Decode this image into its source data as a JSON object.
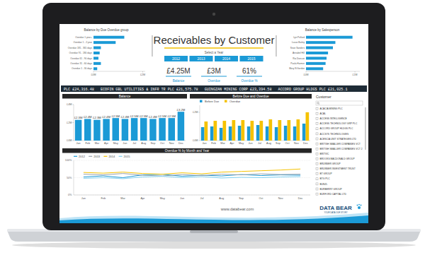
{
  "dashboard": {
    "title": "Receivables by Customer",
    "year_slicer": {
      "label": "Select a Year",
      "years": [
        "2012",
        "2013",
        "2014",
        "2015"
      ]
    },
    "kpis": [
      {
        "value": "£4.25M",
        "label": "Balance"
      },
      {
        "value": "£3M",
        "label": "Overdue"
      },
      {
        "value": "61%",
        "label": "Overdue %"
      }
    ],
    "ticker": "PLC £24,316.48   ECOFIN GBL UTILITIES & INFR TR PLC £21,575.78   GUINGZAN MINING CORP £23,394.58   ACCORD GROUP HLDGS PLC £21,025.1",
    "customer_slicer": {
      "title": "Customer",
      "items": [
        "ACACIA MINING PLC",
        "ACAL",
        "ACCESS INTELLIGENCE",
        "ACCESS TECHNOLOGY GRP PLC",
        "ACCORD GROUP HLDGS PLC",
        "ACCSYS TECHNOLOGIES",
        "ACENCIA UNIT STRATEGIES LTD",
        "BRITISH SMALLER COMPANIES VCT",
        "BRITISH SMALLER COMPANIES VCT 2",
        "BRITVIC",
        "BROOKS MACDONALD GROUP",
        "BRUNNER GROUP",
        "BRUNNER INVESTMENT TRUST",
        "BT GROUP",
        "BTG PLC",
        "BUNZL",
        "BURBERRY GROUP",
        "BURFORD CAPITAL LTD"
      ]
    },
    "footer": {
      "url": "www.databear.com",
      "brand": "DATA BEAR",
      "tagline": "YOUR DATA OUR STORY"
    }
  },
  "chart_data": [
    {
      "type": "bar",
      "orientation": "horizontal",
      "title": "Balance by Due Overdue group",
      "categories": [
        "Overdue 1 year+",
        "Overdue 1 - 2 year",
        "Overdue 181 - 365 days",
        "Overdue 91 - 180 days",
        "Overdue 61 - 90 days",
        "Overdue 31 - 60 days",
        "Overdue 1 - 30 days"
      ],
      "values": [
        1.25,
        0.9,
        0.3,
        0.25,
        0.2,
        0.3,
        0.15
      ],
      "color": "#1b9ad6",
      "xlim": [
        0,
        2.1
      ],
      "xticks": [
        {
          "value": 0,
          "label": "£0M"
        },
        {
          "value": 2,
          "label": "£2M"
        }
      ],
      "grid": false
    },
    {
      "type": "bar",
      "orientation": "horizontal",
      "title": "Balance by Salesperson",
      "categories": [
        "Lyn Pollard",
        "Lucas Bailey",
        "Sean Sanders",
        "Annabel Hill",
        "Ria Duncan",
        "Paula Harmer",
        "Mary N Gordon"
      ],
      "values": [
        0.95,
        0.6,
        0.55,
        0.45,
        0.42,
        0.4,
        0.35
      ],
      "color": "#1b9ad6",
      "xlim": [
        0,
        1.1
      ],
      "xticks": [
        {
          "value": 0,
          "label": "£0M"
        },
        {
          "value": 1,
          "label": "£1M"
        }
      ],
      "grid": false
    },
    {
      "type": "bar",
      "title": "Balance",
      "categories": [
        "Jan",
        "Feb",
        "Mar",
        "Apr",
        "May",
        "Jun",
        "Jul",
        "Aug",
        "Sep",
        "Oct",
        "Nov",
        "Dec"
      ],
      "values": [
        2.3,
        2.4,
        2.3,
        2.4,
        2.5,
        2.4,
        2.5,
        2.5,
        2.4,
        2.5,
        2.5,
        3.2
      ],
      "value_labels": [
        "£2.3M",
        "£2.4M",
        "£2.3M",
        "£2.4M",
        "£2.5M",
        "£2.4M",
        "£2.5M",
        "£2.5M",
        "£2.4M",
        "£2.5M",
        "£2.5M",
        "£3.2M"
      ],
      "data_labels": true,
      "color": "#1b9ad6",
      "ylim": [
        0,
        4
      ],
      "yticks": [
        {
          "value": 0,
          "label": "£0M"
        },
        {
          "value": 2,
          "label": "£2M"
        },
        {
          "value": 4,
          "label": "£4M"
        }
      ],
      "grid": false
    },
    {
      "type": "bar",
      "title": "Before Due and Overdue",
      "categories": [
        "Jan",
        "Feb",
        "Mar",
        "Apr",
        "May",
        "Jun",
        "Jul",
        "Aug",
        "Sep",
        "Oct",
        "Nov",
        "Dec"
      ],
      "series": [
        {
          "name": "Before Due",
          "color": "#1b9ad6",
          "values": [
            0.95,
            1.0,
            0.9,
            1.0,
            1.05,
            1.0,
            1.1,
            1.0,
            0.95,
            1.05,
            1.0,
            1.2
          ]
        },
        {
          "name": "Overdue",
          "color": "#f5c200",
          "values": [
            1.35,
            1.4,
            1.4,
            1.45,
            1.45,
            1.4,
            1.4,
            1.5,
            1.45,
            1.45,
            1.5,
            2.0
          ]
        }
      ],
      "ylim": [
        0,
        2.5
      ],
      "yticks": [
        {
          "value": 0,
          "label": "£0M"
        },
        {
          "value": 2,
          "label": "£2M"
        }
      ],
      "legend": "top-left",
      "grid": false
    },
    {
      "type": "line",
      "title": "Overdue % by Month and Year",
      "categories": [
        "Jan",
        "Feb",
        "Mar",
        "Apr",
        "May",
        "Jun",
        "Jul",
        "Aug",
        "Sep",
        "Oct",
        "Nov",
        "Dec"
      ],
      "series": [
        {
          "name": "2012",
          "color": "#1b9ad6",
          "values": [
            52,
            55,
            50,
            58,
            60,
            54,
            57,
            55,
            59,
            56,
            58,
            57
          ]
        },
        {
          "name": "2013",
          "color": "#9aa3ad",
          "values": [
            60,
            58,
            62,
            57,
            55,
            59,
            56,
            60,
            58,
            61,
            59,
            60
          ]
        },
        {
          "name": "2014",
          "color": "#f5c200",
          "values": [
            65,
            63,
            66,
            62,
            60,
            64,
            61,
            66,
            68,
            70,
            72,
            75
          ]
        },
        {
          "name": "2015",
          "color": "#7fd0f0",
          "values": [
            48,
            50,
            47,
            52,
            54,
            50,
            53,
            49,
            51,
            50,
            52,
            53
          ]
        }
      ],
      "ylim": [
        0,
        100
      ],
      "yticks": [
        {
          "value": 0,
          "label": "0%"
        },
        {
          "value": 50,
          "label": "50%"
        },
        {
          "value": 100,
          "label": "100%"
        }
      ],
      "legend": "top-left",
      "grid": true
    }
  ]
}
